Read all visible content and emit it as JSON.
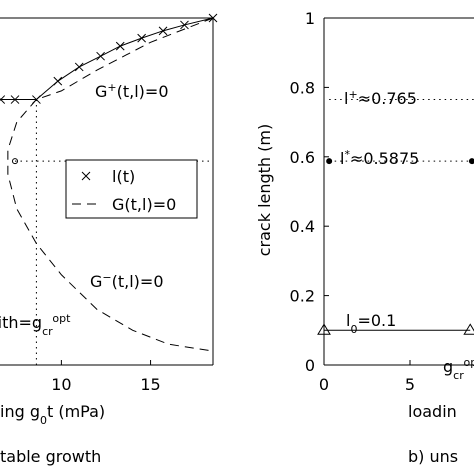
{
  "chart_data": [
    {
      "type": "line",
      "xlabel": [
        {
          "text": "ing g"
        },
        {
          "text": "0",
          "shift": "sub"
        },
        {
          "text": "t (mPa)"
        }
      ],
      "caption": "table growth",
      "xlim": [
        0,
        18.5
      ],
      "ylim": [
        0,
        1
      ],
      "xticks": [
        10,
        15
      ],
      "series": [
        {
          "name": "l(t)",
          "marker": "x",
          "line": "solid",
          "color": "#000000",
          "x": [
            6.6,
            7.4,
            8.6,
            9.8,
            11.0,
            12.2,
            13.3,
            14.5,
            15.7,
            16.9,
            18.5
          ],
          "values": [
            0.765,
            0.765,
            0.765,
            0.818,
            0.859,
            0.89,
            0.919,
            0.942,
            0.963,
            0.98,
            1.0
          ]
        },
        {
          "name": "G(t,l)=0",
          "line": "dashed",
          "color": "#000000",
          "x": [
            18.5,
            15,
            12,
            10,
            8.6,
            7.5,
            7.0,
            7.0,
            7.5,
            8.6,
            10,
            12,
            14,
            16,
            18.5
          ],
          "values": [
            1.0,
            0.93,
            0.85,
            0.79,
            0.765,
            0.7,
            0.62,
            0.55,
            0.45,
            0.35,
            0.26,
            0.16,
            0.1,
            0.06,
            0.04
          ]
        },
        {
          "marker": "o",
          "color": "#000000",
          "x": [
            7.4
          ],
          "values": [
            0.5875
          ]
        },
        {
          "line": "dotted",
          "color": "#000000",
          "x": [
            8.6,
            8.6
          ],
          "values": [
            0.765,
            0
          ]
        },
        {
          "line": "dotted",
          "color": "#000000",
          "x": [
            7.4,
            18.5
          ],
          "values": [
            0.5875,
            0.5875
          ]
        }
      ],
      "annotations": [
        [
          {
            "text": "G"
          },
          {
            "text": "+",
            "shift": "sup"
          },
          {
            "text": "(t,l)=0"
          }
        ],
        [
          {
            "text": "G"
          },
          {
            "text": "−",
            "shift": "sup"
          },
          {
            "text": "(t,l)=0"
          }
        ],
        [
          {
            "text": "fith"
          },
          {
            "text": "=g"
          },
          {
            "text": "cr",
            "shift": "sub"
          },
          {
            "text": "opt",
            "shift": "sup"
          }
        ]
      ]
    },
    {
      "type": "line",
      "ylabel": "crack length (m)",
      "xlabel": [
        {
          "text": "loadin"
        }
      ],
      "caption": "b) uns",
      "xlim": [
        0,
        8.72
      ],
      "ylim": [
        0,
        1
      ],
      "xticks": [
        0,
        5
      ],
      "yticks": [
        0,
        0.2,
        0.4,
        0.6,
        0.8,
        1
      ],
      "series": [
        {
          "marker": "triangle",
          "line": "solid",
          "color": "#000000",
          "x": [
            0,
            8.5
          ],
          "values": [
            0.1,
            0.1
          ]
        },
        {
          "line": "dotted",
          "color": "#000000",
          "x": [
            0.3,
            8.72
          ],
          "values": [
            0.765,
            0.765
          ]
        },
        {
          "line": "dotted",
          "marker": "dot",
          "color": "#000000",
          "x": [
            0.3,
            8.6
          ],
          "values": [
            0.5875,
            0.5875
          ]
        }
      ],
      "annotations": [
        [
          {
            "text": "l"
          },
          {
            "text": "+",
            "shift": "sup"
          },
          {
            "text": "≈0.765"
          }
        ],
        [
          {
            "text": "l"
          },
          {
            "text": "*",
            "shift": "sup"
          },
          {
            "text": "≈0.5875"
          }
        ],
        [
          {
            "text": "l"
          },
          {
            "text": "0",
            "shift": "sub"
          },
          {
            "text": "=0.1"
          }
        ],
        [
          {
            "text": "g"
          },
          {
            "text": "cr",
            "shift": "sub"
          },
          {
            "text": "opt",
            "shift": "sup"
          }
        ]
      ]
    }
  ]
}
